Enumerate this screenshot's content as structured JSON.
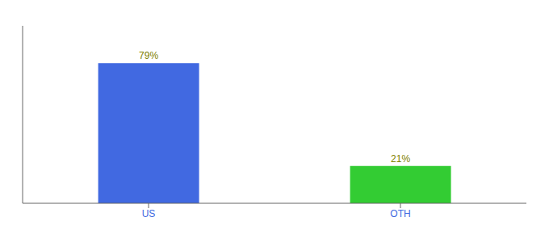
{
  "chart_data": {
    "type": "bar",
    "categories": [
      "US",
      "OTH"
    ],
    "values": [
      79,
      21
    ],
    "colors": [
      "#4169e1",
      "#33cc33"
    ],
    "ylim": [
      0,
      100
    ],
    "yticks": [],
    "tick_labels": "x",
    "data_labels": true,
    "value_labels": [
      "79%",
      "21%"
    ],
    "grid": false
  }
}
